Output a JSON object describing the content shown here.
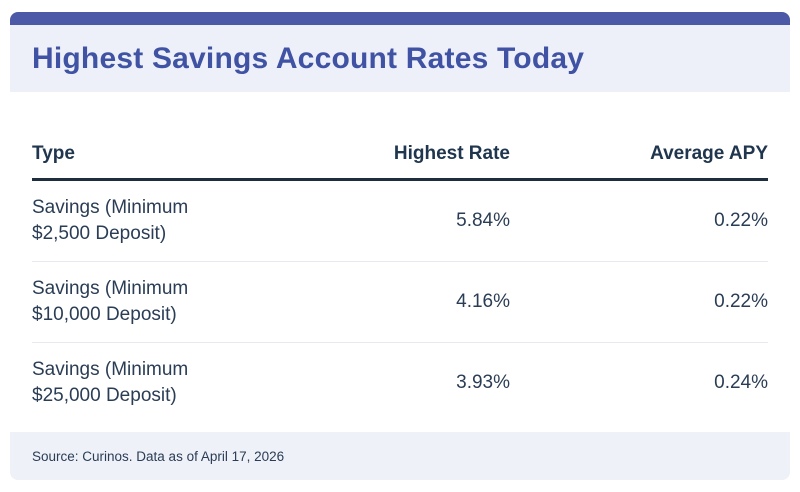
{
  "theme": {
    "accent_bar_color": "#4b59a7",
    "title_color": "#4052a4",
    "panel_background": "#edf0f8",
    "body_text_color": "#2a3d55",
    "header_rule_color": "#1e2e3f"
  },
  "header": {
    "title": "Highest Savings Account Rates Today"
  },
  "table": {
    "columns": [
      "Type",
      "Highest Rate",
      "Average APY"
    ],
    "rows": [
      {
        "type_lines": [
          "Savings (Minimum",
          "$2,500 Deposit)"
        ],
        "highest_rate": "5.84%",
        "average_apy": "0.22%"
      },
      {
        "type_lines": [
          "Savings (Minimum",
          "$10,000 Deposit)"
        ],
        "highest_rate": "4.16%",
        "average_apy": "0.22%"
      },
      {
        "type_lines": [
          "Savings (Minimum",
          "$25,000 Deposit)"
        ],
        "highest_rate": "3.93%",
        "average_apy": "0.24%"
      }
    ]
  },
  "footer": {
    "source_note": "Source: Curinos. Data as of April 17, 2026"
  },
  "chart_data": {
    "type": "table",
    "title": "Highest Savings Account Rates Today",
    "columns": [
      "Type",
      "Highest Rate",
      "Average APY"
    ],
    "rows": [
      [
        "Savings (Minimum $2,500 Deposit)",
        "5.84%",
        "0.22%"
      ],
      [
        "Savings (Minimum $10,000 Deposit)",
        "4.16%",
        "0.22%"
      ],
      [
        "Savings (Minimum $25,000 Deposit)",
        "3.93%",
        "0.24%"
      ]
    ],
    "source": "Source: Curinos. Data as of April 17, 2026"
  }
}
